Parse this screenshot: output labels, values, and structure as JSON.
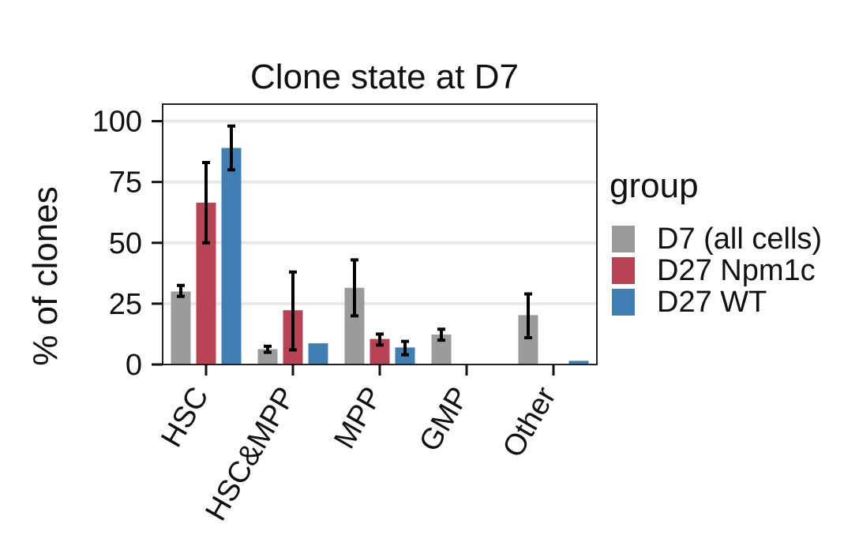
{
  "chart_data": {
    "type": "bar",
    "title": "Clone state at D7",
    "xlabel": "",
    "ylabel": "% of clones",
    "ylim": [
      0,
      107
    ],
    "yticks": [
      0,
      25,
      50,
      75,
      100
    ],
    "grid": true,
    "categories": [
      "HSC",
      "HSC&MPP",
      "MPP",
      "GMP",
      "Other"
    ],
    "series": [
      {
        "name": "D7 (all cells)",
        "color": "#9b9b9b",
        "values": [
          30,
          6.3,
          31.5,
          12.3,
          20.3
        ],
        "error_low": [
          28,
          5,
          20,
          10,
          11
        ],
        "error_high": [
          32.5,
          7.5,
          43,
          14.5,
          29
        ]
      },
      {
        "name": "D27 Npm1c",
        "color": "#b84355",
        "values": [
          66.5,
          22.3,
          10.5,
          0,
          0
        ],
        "error_low": [
          50,
          6,
          8,
          null,
          null
        ],
        "error_high": [
          83,
          38,
          12.5,
          null,
          null
        ]
      },
      {
        "name": "D27 WT",
        "color": "#3f7fb4",
        "values": [
          89,
          8.7,
          7,
          0,
          1.5
        ],
        "error_low": [
          80,
          null,
          4,
          null,
          null
        ],
        "error_high": [
          98,
          null,
          9.5,
          null,
          null
        ]
      }
    ],
    "legend": {
      "title": "group",
      "placement": "right"
    }
  }
}
